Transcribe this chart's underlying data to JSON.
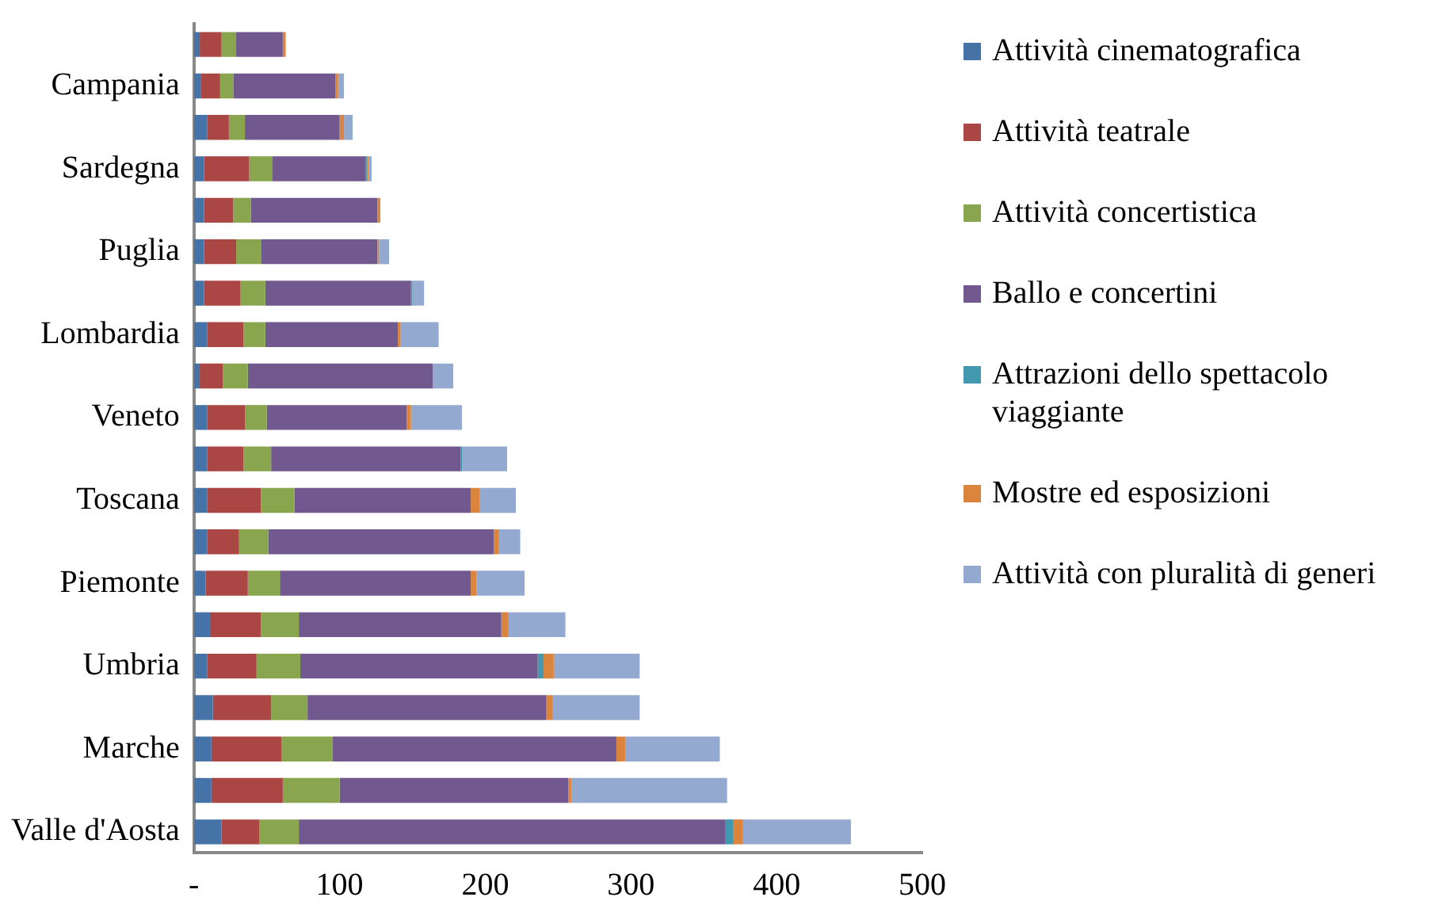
{
  "chart_data": {
    "type": "bar",
    "orientation": "horizontal",
    "stacked": true,
    "categories": [
      null,
      "Campania",
      null,
      "Sardegna",
      null,
      "Puglia",
      null,
      "Lombardia",
      null,
      "Veneto",
      null,
      "Toscana",
      null,
      "Piemonte",
      null,
      "Umbria",
      null,
      "Marche",
      null,
      "Valle d'Aosta"
    ],
    "series": [
      {
        "name": "Attività cinematografica",
        "color": "#4572a7",
        "values": [
          4,
          5,
          9,
          7,
          7,
          7,
          7,
          9,
          4,
          9,
          9,
          9,
          9,
          8,
          11,
          9,
          13,
          12,
          12,
          19
        ]
      },
      {
        "name": "Attività teatrale",
        "color": "#aa4643",
        "values": [
          15,
          13,
          15,
          31,
          20,
          22,
          25,
          25,
          16,
          26,
          25,
          37,
          22,
          29,
          35,
          34,
          40,
          48,
          49,
          26
        ]
      },
      {
        "name": "Attività concertistica",
        "color": "#89a54e",
        "values": [
          10,
          9,
          11,
          16,
          12,
          17,
          17,
          15,
          17,
          15,
          19,
          23,
          20,
          22,
          26,
          30,
          25,
          35,
          39,
          27
        ]
      },
      {
        "name": "Ballo e concertini",
        "color": "#71588f",
        "values": [
          32,
          70,
          65,
          64,
          87,
          80,
          100,
          91,
          127,
          96,
          130,
          121,
          155,
          131,
          139,
          163,
          164,
          195,
          157,
          293
        ]
      },
      {
        "name": "Attrazioni dello spettacolo viaggiante",
        "color": "#4198af",
        "values": [
          0,
          0,
          0,
          1,
          0,
          0,
          1,
          0,
          0,
          0,
          1,
          0,
          0,
          0,
          0,
          4,
          0,
          0,
          0,
          5
        ]
      },
      {
        "name": "Mostre ed esposizioni",
        "color": "#db843d",
        "values": [
          2,
          2,
          3,
          1,
          2,
          1,
          0,
          2,
          0,
          3,
          0,
          6,
          3,
          4,
          5,
          7,
          4,
          6,
          2,
          7
        ]
      },
      {
        "name": "Attività con pluralità di generi",
        "color": "#93a9cf",
        "values": [
          0,
          4,
          6,
          2,
          0,
          7,
          8,
          26,
          14,
          35,
          31,
          25,
          15,
          33,
          39,
          59,
          60,
          65,
          107,
          74
        ]
      }
    ],
    "xlim": [
      0,
      500
    ],
    "xticks": [
      {
        "value": 0,
        "label": "-"
      },
      100,
      200,
      300,
      400,
      500
    ],
    "grid": false,
    "legend": "right"
  }
}
